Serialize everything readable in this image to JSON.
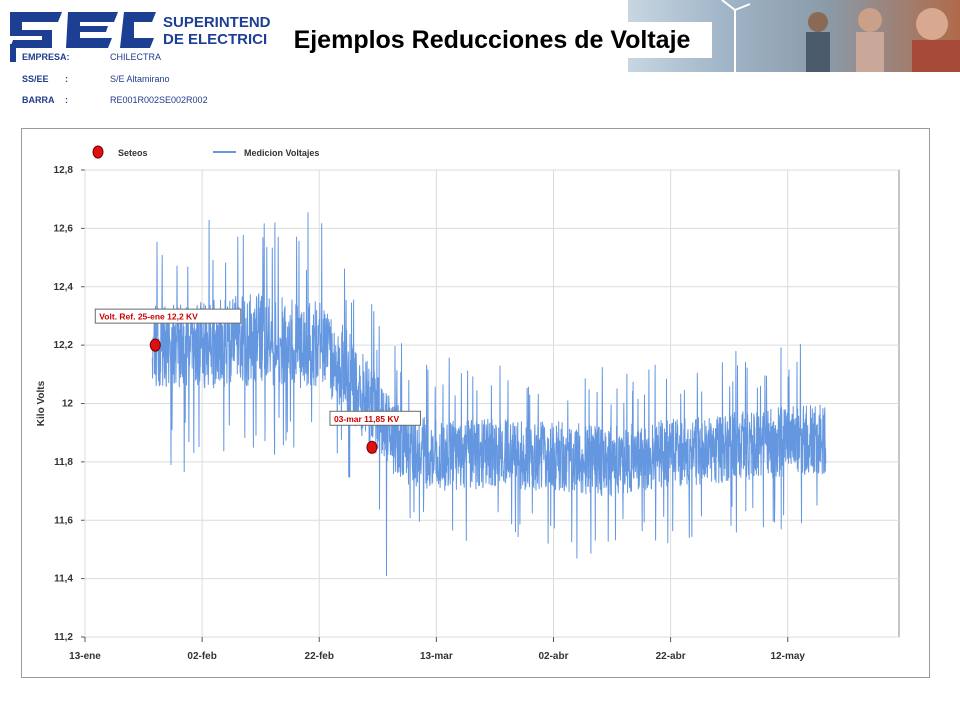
{
  "header": {
    "title": "Ejemplos Reducciones de Voltaje",
    "logo_text": [
      "SUPERINTEND",
      "DE ELECTRICI"
    ]
  },
  "info": [
    {
      "label": "EMPRESA:",
      "colon": "",
      "value": "CHILECTRA"
    },
    {
      "label": "SS/EE",
      "colon": ":",
      "value": "S/E Altamirano"
    },
    {
      "label": "BARRA",
      "colon": ":",
      "value": "RE001R002SE002R002"
    }
  ],
  "colors": {
    "series": "#6497e0",
    "marker": "#e01010",
    "label_text": "#cc0000",
    "info_text": "#1f3d8c",
    "grid": "#dcdcdc",
    "logo_blue": "#1c3f94"
  },
  "chart_data": {
    "type": "line",
    "ylabel": "Kilo Volts",
    "xlabel": "",
    "ylim": [
      11.2,
      12.8
    ],
    "y_ticks": [
      "11,2",
      "11,4",
      "11,6",
      "11,8",
      "12",
      "12,2",
      "12,4",
      "12,6",
      "12,8"
    ],
    "x_ticks": [
      "13-ene",
      "02-feb",
      "22-feb",
      "13-mar",
      "02-abr",
      "22-abr",
      "12-may"
    ],
    "x_tick_days": [
      0,
      20,
      40,
      60,
      80,
      100,
      120
    ],
    "x_range_days": [
      0,
      139
    ],
    "x_note": "day offsets from 13-ene",
    "grid": true,
    "legend_position": "top-left",
    "series": [
      {
        "name": "Medicion Voltajes",
        "kind": "line",
        "x_start_day": 11.5,
        "x_end_day": 126.5,
        "envelope": {
          "day": [
            11.5,
            20,
            30,
            40,
            45,
            49,
            52,
            55,
            60,
            70,
            80,
            90,
            100,
            110,
            120,
            126.5
          ],
          "center": [
            12.2,
            12.2,
            12.22,
            12.2,
            12.1,
            11.98,
            11.9,
            11.85,
            11.82,
            11.83,
            11.82,
            11.8,
            11.83,
            11.85,
            11.87,
            11.88
          ],
          "spread": [
            0.14,
            0.15,
            0.16,
            0.15,
            0.15,
            0.14,
            0.13,
            0.13,
            0.12,
            0.12,
            0.12,
            0.12,
            0.12,
            0.12,
            0.12,
            0.12
          ]
        },
        "notable_values": {
          "max": 12.57,
          "max_day": 33,
          "min": 11.41,
          "min_day": 51.5
        }
      },
      {
        "name": "Seteos",
        "kind": "marker",
        "points": [
          {
            "day": 12,
            "value": 12.2,
            "label": "Volt. Ref. 25-ene 12,2 KV"
          },
          {
            "day": 49,
            "value": 11.85,
            "label": "03-mar 11,85 KV"
          }
        ]
      }
    ]
  }
}
